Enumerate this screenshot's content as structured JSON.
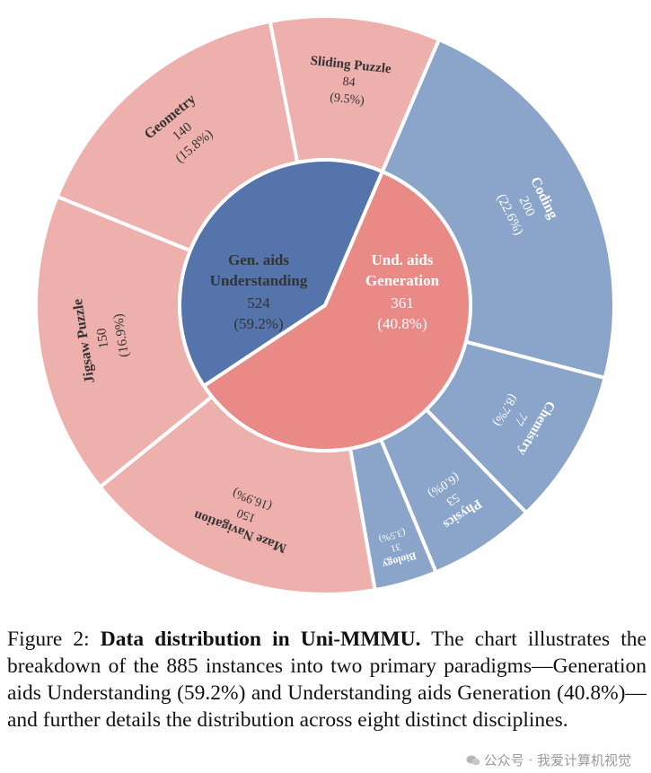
{
  "chart_data": {
    "type": "sunburst",
    "total": 885,
    "inner": [
      {
        "id": "gau",
        "label_lines": [
          "Gen. aids",
          "Understanding"
        ],
        "value": 524,
        "percent": "(59.2%)",
        "color": "#E98A86"
      },
      {
        "id": "uag",
        "label_lines": [
          "Und. aids",
          "Generation"
        ],
        "value": 361,
        "percent": "(40.8%)",
        "color": "#5474AB"
      }
    ],
    "outer": [
      {
        "id": "coding",
        "parent": "uag",
        "label": "Coding",
        "value": 200,
        "percent": "(22.6%)",
        "color": "#8BA4CA"
      },
      {
        "id": "chemistry",
        "parent": "uag",
        "label": "Chemistry",
        "value": 77,
        "percent": "(8.7%)",
        "color": "#8BA4CA"
      },
      {
        "id": "physics",
        "parent": "uag",
        "label": "Physics",
        "value": 53,
        "percent": "(6.0%)",
        "color": "#8BA4CA"
      },
      {
        "id": "biology",
        "parent": "uag",
        "label": "Biology",
        "value": 31,
        "percent": "(3.5%)",
        "color": "#8BA4CA"
      },
      {
        "id": "maze",
        "parent": "gau",
        "label": "Maze Navigation",
        "value": 150,
        "percent": "(16.9%)",
        "color": "#EEB0AD"
      },
      {
        "id": "jigsaw",
        "parent": "gau",
        "label": "Jigsaw Puzzle",
        "value": 150,
        "percent": "(16.9%)",
        "color": "#EEB0AD"
      },
      {
        "id": "geometry",
        "parent": "gau",
        "label": "Geometry",
        "value": 140,
        "percent": "(15.8%)",
        "color": "#EEB0AD"
      },
      {
        "id": "sliding",
        "parent": "gau",
        "label": "Sliding Puzzle",
        "value": 84,
        "percent": "(9.5%)",
        "color": "#EEB0AD"
      }
    ]
  },
  "caption": {
    "prefix": "Figure 2: ",
    "bold": "Data distribution in Uni-MMMU.",
    "body": " The chart illustrates the breakdown of the 885 instances into two primary paradigms—Generation aids Understanding (59.2%) and Understanding aids Generation (40.8%)—and further details the distribution across eight distinct disciplines."
  },
  "watermark": {
    "text": "公众号 · 我爱计算机视觉"
  },
  "colors": {
    "text_dark": "#333333",
    "separator": "#ffffff"
  }
}
